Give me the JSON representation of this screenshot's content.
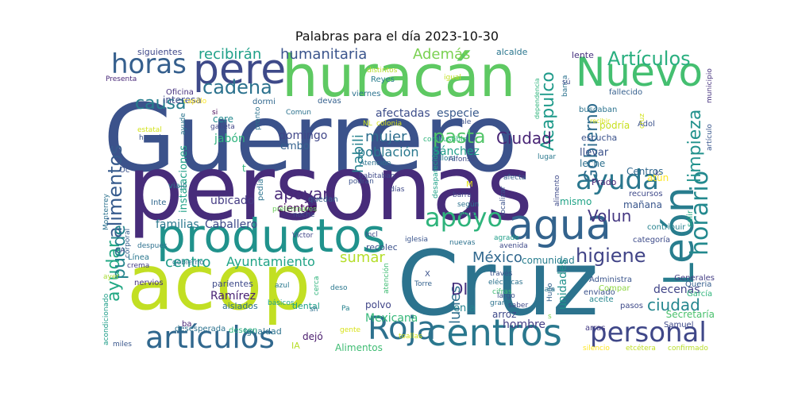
{
  "chart_data": {
    "type": "wordcloud",
    "title": "Palabras para el día 2023-10-30",
    "background": "#ffffff",
    "colormap": "viridis",
    "words": [
      {
        "text": "Guerrero",
        "color": "#3b528b"
      },
      {
        "text": "personas",
        "color": "#472c7a"
      },
      {
        "text": "acop",
        "color": "#c2df23"
      },
      {
        "text": "Cruz",
        "color": "#2c738e"
      },
      {
        "text": "huracán",
        "color": "#5ec962"
      },
      {
        "text": "productos",
        "color": "#20928c"
      },
      {
        "text": "centros",
        "color": "#2a788e"
      },
      {
        "text": "Nuevo",
        "color": "#44bf70"
      },
      {
        "text": "León",
        "color": "#287d8e"
      },
      {
        "text": "agua",
        "color": "#33638d"
      },
      {
        "text": "pere",
        "color": "#3e4a89"
      },
      {
        "text": "artículos",
        "color": "#31688e"
      },
      {
        "text": "personal",
        "color": "#3f4788"
      },
      {
        "text": "Roja",
        "color": "#2d718e"
      },
      {
        "text": "horas",
        "color": "#355f8d"
      },
      {
        "text": "ayuda",
        "color": "#2a778e"
      },
      {
        "text": "apoyo",
        "color": "#2fb47c"
      },
      {
        "text": "horario",
        "color": "#23898e"
      },
      {
        "text": "Artículos",
        "color": "#29af7f"
      },
      {
        "text": "alimentos",
        "color": "#375b8d"
      },
      {
        "text": "ayudar",
        "color": "#22a884"
      },
      {
        "text": "cadena",
        "color": "#2c728e"
      },
      {
        "text": "higiene",
        "color": "#414487"
      },
      {
        "text": "causa",
        "color": "#277f8e"
      },
      {
        "text": "pasta",
        "color": "#52c569"
      },
      {
        "text": "Acapulco",
        "color": "#1f9a8a"
      },
      {
        "text": "limpieza",
        "color": "#21918c"
      },
      {
        "text": "Ciudad",
        "color": "#482475"
      },
      {
        "text": "Gobierno",
        "color": "#2f6c8e"
      },
      {
        "text": "ciudad",
        "color": "#24868e"
      },
      {
        "text": "apoyar",
        "color": "#482878"
      },
      {
        "text": "México",
        "color": "#31688e"
      },
      {
        "text": "mujer",
        "color": "#2e6e8e"
      },
      {
        "text": "puede",
        "color": "#25848e"
      },
      {
        "text": "recibirán",
        "color": "#1fa088"
      },
      {
        "text": "humanitaria",
        "color": "#3a548c"
      },
      {
        "text": "Además",
        "color": "#7ad151"
      },
      {
        "text": "habili",
        "color": "#26828e"
      },
      {
        "text": "lunes",
        "color": "#2e6f8e"
      },
      {
        "text": "DI",
        "color": "#46327e"
      },
      {
        "text": "sumar",
        "color": "#b5de2b"
      },
      {
        "text": "Volun",
        "color": "#453882"
      },
      {
        "text": "centro",
        "color": "#1e9c89"
      },
      {
        "text": "Ayuntamiento",
        "color": "#20a386"
      },
      {
        "text": "población",
        "color": "#2a788e"
      },
      {
        "text": "afectadas",
        "color": "#3d4d8a"
      },
      {
        "text": "especie",
        "color": "#38598c"
      },
      {
        "text": "cientos",
        "color": "#440154"
      },
      {
        "text": "Sánchez",
        "color": "#1f9e89"
      },
      {
        "text": "domingo",
        "color": "#404688"
      },
      {
        "text": "ubicado",
        "color": "#443b84"
      },
      {
        "text": "Caballero",
        "color": "#3e4989"
      },
      {
        "text": "familias",
        "color": "#2a788e"
      },
      {
        "text": "instalaciones",
        "color": "#1fa188"
      },
      {
        "text": "Ramírez",
        "color": "#482173"
      },
      {
        "text": "Mexicana",
        "color": "#35b779"
      },
      {
        "text": "decenas",
        "color": "#404588"
      },
      {
        "text": "comunidad",
        "color": "#277e8e"
      },
      {
        "text": "Secretaría",
        "color": "#4ac16d"
      },
      {
        "text": "unidades",
        "color": "#21918c"
      },
      {
        "text": "hombre",
        "color": "#433e85"
      },
      {
        "text": "Alimentos",
        "color": "#3fbc73"
      },
      {
        "text": "Igualdad",
        "color": "#2c738e"
      },
      {
        "text": "siguientes",
        "color": "#3f4889"
      },
      {
        "text": "alcalde",
        "color": "#2a768e"
      },
      {
        "text": "lente",
        "color": "#46327e"
      },
      {
        "text": "interesa",
        "color": "#3e4989"
      },
      {
        "text": "jabón",
        "color": "#2db27d"
      },
      {
        "text": "embo",
        "color": "#34618d"
      },
      {
        "text": "cere",
        "color": "#23898e"
      },
      {
        "text": "atún",
        "color": "#fde725"
      },
      {
        "text": "llevar",
        "color": "#3b528b"
      },
      {
        "text": "leche",
        "color": "#2d708e"
      },
      {
        "text": "mañana",
        "color": "#39568c"
      },
      {
        "text": "mismo",
        "color": "#20a386"
      },
      {
        "text": "Prado",
        "color": "#482576"
      },
      {
        "text": "Centros",
        "color": "#31688e"
      },
      {
        "text": "escucha",
        "color": "#3b528b"
      },
      {
        "text": "podría",
        "color": "#c8e020"
      },
      {
        "text": "buscaban",
        "color": "#2c738e"
      },
      {
        "text": "fallecido",
        "color": "#355f8d"
      },
      {
        "text": "enla",
        "color": "#26828e"
      },
      {
        "text": "arroz",
        "color": "#3e4989"
      },
      {
        "text": "polvo",
        "color": "#404588"
      },
      {
        "text": "dejó",
        "color": "#481a6c"
      },
      {
        "text": "dental",
        "color": "#1fa088"
      },
      {
        "text": "aislados",
        "color": "#2e6e8e"
      },
      {
        "text": "parientes",
        "color": "#3e4a89"
      },
      {
        "text": "desesperada",
        "color": "#2c728e"
      },
      {
        "text": "deseen",
        "color": "#29af7f"
      },
      {
        "text": "Administra",
        "color": "#3a548c"
      },
      {
        "text": "enviado",
        "color": "#3b528b"
      },
      {
        "text": "aceite",
        "color": "#24878e"
      },
      {
        "text": "Generales",
        "color": "#433d84"
      },
      {
        "text": "Samuel",
        "color": "#3e4989"
      },
      {
        "text": "confirmado",
        "color": "#b8de29"
      },
      {
        "text": "etcétera",
        "color": "#c0df25"
      },
      {
        "text": "silencio",
        "color": "#fde725"
      },
      {
        "text": "arras",
        "color": "#443a83"
      },
      {
        "text": "categoría",
        "color": "#3e4c8a"
      },
      {
        "text": "García",
        "color": "#2fb47c"
      },
      {
        "text": "Queria",
        "color": "#355e8d"
      },
      {
        "text": "recursos",
        "color": "#3e4989"
      },
      {
        "text": "contribuir",
        "color": "#26828e"
      },
      {
        "text": "pasos",
        "color": "#3e4a89"
      },
      {
        "text": "salir",
        "color": "#22a884"
      },
      {
        "text": "Adol",
        "color": "#3b528b"
      },
      {
        "text": "municipio",
        "color": "#46327e"
      },
      {
        "text": "artículo",
        "color": "#39568c"
      },
      {
        "text": "recibir",
        "color": "#d8e219"
      },
      {
        "text": "Compar",
        "color": "#8fd744"
      },
      {
        "text": "viernes",
        "color": "#2c728e"
      },
      {
        "text": "igual",
        "color": "#c2df23"
      },
      {
        "text": "distintos",
        "color": "#b5de2b"
      },
      {
        "text": "Reyes",
        "color": "#287d8e"
      },
      {
        "text": "devas",
        "color": "#34608d"
      },
      {
        "text": "dormi",
        "color": "#31688e"
      },
      {
        "text": "Comun",
        "color": "#2c728e"
      },
      {
        "text": "Oficina",
        "color": "#46307e"
      },
      {
        "text": "capillo",
        "color": "#fde725"
      },
      {
        "text": "si",
        "color": "#440154"
      },
      {
        "text": "galleta",
        "color": "#404688"
      },
      {
        "text": "hacerlo",
        "color": "#3a548c"
      },
      {
        "text": "estatal",
        "color": "#d2e21b"
      },
      {
        "text": "ayude",
        "color": "#2b758e"
      },
      {
        "text": "pronto",
        "color": "#2c728e"
      },
      {
        "text": "Presenta",
        "color": "#482878"
      },
      {
        "text": "viajó",
        "color": "#2a788e"
      },
      {
        "text": "Inte",
        "color": "#31688e"
      },
      {
        "text": "Oc",
        "color": "#3b528b"
      },
      {
        "text": "Monterrey",
        "color": "#2c728e"
      },
      {
        "text": "corporal",
        "color": "#355f8d"
      },
      {
        "text": "CA",
        "color": "#3e4989"
      },
      {
        "text": "después",
        "color": "#2d708e"
      },
      {
        "text": "Línea",
        "color": "#2a778e"
      },
      {
        "text": "crema",
        "color": "#433e85"
      },
      {
        "text": "ayer",
        "color": "#a8db34"
      },
      {
        "text": "nervios",
        "color": "#46307e"
      },
      {
        "text": "acondicionado",
        "color": "#1f9e89"
      },
      {
        "text": "miles",
        "color": "#39568c"
      },
      {
        "text": "ba",
        "color": "#482677"
      },
      {
        "text": "gente",
        "color": "#d8e219"
      },
      {
        "text": "quedan",
        "color": "#34618d"
      },
      {
        "text": "pedía",
        "color": "#2c738e"
      },
      {
        "text": "preliminares",
        "color": "#6ccd5a"
      },
      {
        "text": "noche",
        "color": "#3e4989"
      },
      {
        "text": "Víctor",
        "color": "#404588"
      },
      {
        "text": "gobierno",
        "color": "#2c738e"
      },
      {
        "text": "básicos",
        "color": "#20a486"
      },
      {
        "text": "azul",
        "color": "#2a788e"
      },
      {
        "text": "cerca",
        "color": "#2fb47c"
      },
      {
        "text": "sh",
        "color": "#2d708e"
      },
      {
        "text": "Pa",
        "color": "#26828e"
      },
      {
        "text": "deso",
        "color": "#2a778e"
      },
      {
        "text": "Incl",
        "color": "#3e4a89"
      },
      {
        "text": "recolec",
        "color": "#3b528b"
      },
      {
        "text": "iglesia",
        "color": "#3a548c"
      },
      {
        "text": "atención",
        "color": "#3fbc73"
      },
      {
        "text": "Torre",
        "color": "#34618d"
      },
      {
        "text": "toallas",
        "color": "#d2e21b"
      },
      {
        "text": "X",
        "color": "#3b528b"
      },
      {
        "text": "nuevas",
        "color": "#2c728e"
      },
      {
        "text": "avenida",
        "color": "#3e4a89"
      },
      {
        "text": "través",
        "color": "#3b528b"
      },
      {
        "text": "eléctricas",
        "color": "#2c728e"
      },
      {
        "text": "cifras",
        "color": "#3fbc73"
      },
      {
        "text": "gran",
        "color": "#2c728e"
      },
      {
        "text": "saber",
        "color": "#3e4989"
      },
      {
        "text": "largo",
        "color": "#3b528b"
      },
      {
        "text": "Hugo",
        "color": "#34618d"
      },
      {
        "text": "sala",
        "color": "#2a788e"
      },
      {
        "text": "agrade",
        "color": "#1f9e89"
      },
      {
        "text": "días",
        "color": "#3e4989"
      },
      {
        "text": "según",
        "color": "#2c728e"
      },
      {
        "text": "abrió",
        "color": "#433e85"
      },
      {
        "text": "localizar",
        "color": "#3b528b"
      },
      {
        "text": "afecta",
        "color": "#355f8d"
      },
      {
        "text": "barra",
        "color": "#404588"
      },
      {
        "text": "M",
        "color": "#e5e419"
      },
      {
        "text": "llora",
        "color": "#2a788e"
      },
      {
        "text": "Alfonso",
        "color": "#3e4a89"
      },
      {
        "text": "desaparecidos",
        "color": "#1fa188"
      },
      {
        "text": "podrán",
        "color": "#3b528b"
      },
      {
        "text": "Atención",
        "color": "#2c728e"
      },
      {
        "text": "habitaban",
        "color": "#3e4989"
      },
      {
        "text": "lugar",
        "color": "#2a788e"
      },
      {
        "text": "alimento",
        "color": "#3e4a89"
      },
      {
        "text": "combustible",
        "color": "#2fb47c"
      },
      {
        "text": "NL",
        "color": "#c8e020"
      },
      {
        "text": "colonia",
        "color": "#d8e219"
      },
      {
        "text": "male",
        "color": "#3b528b"
      },
      {
        "text": "dependencia",
        "color": "#2fb47c"
      },
      {
        "text": "banca",
        "color": "#2c728e"
      },
      {
        "text": "sú",
        "color": "#3e4989"
      },
      {
        "text": "cruz",
        "color": "#d2e21b"
      },
      {
        "text": "k",
        "color": "#3e4989"
      },
      {
        "text": "t",
        "color": "#2fb47c"
      },
      {
        "text": "IA",
        "color": "#b8de29"
      },
      {
        "text": "s",
        "color": "#7ad151"
      }
    ]
  }
}
